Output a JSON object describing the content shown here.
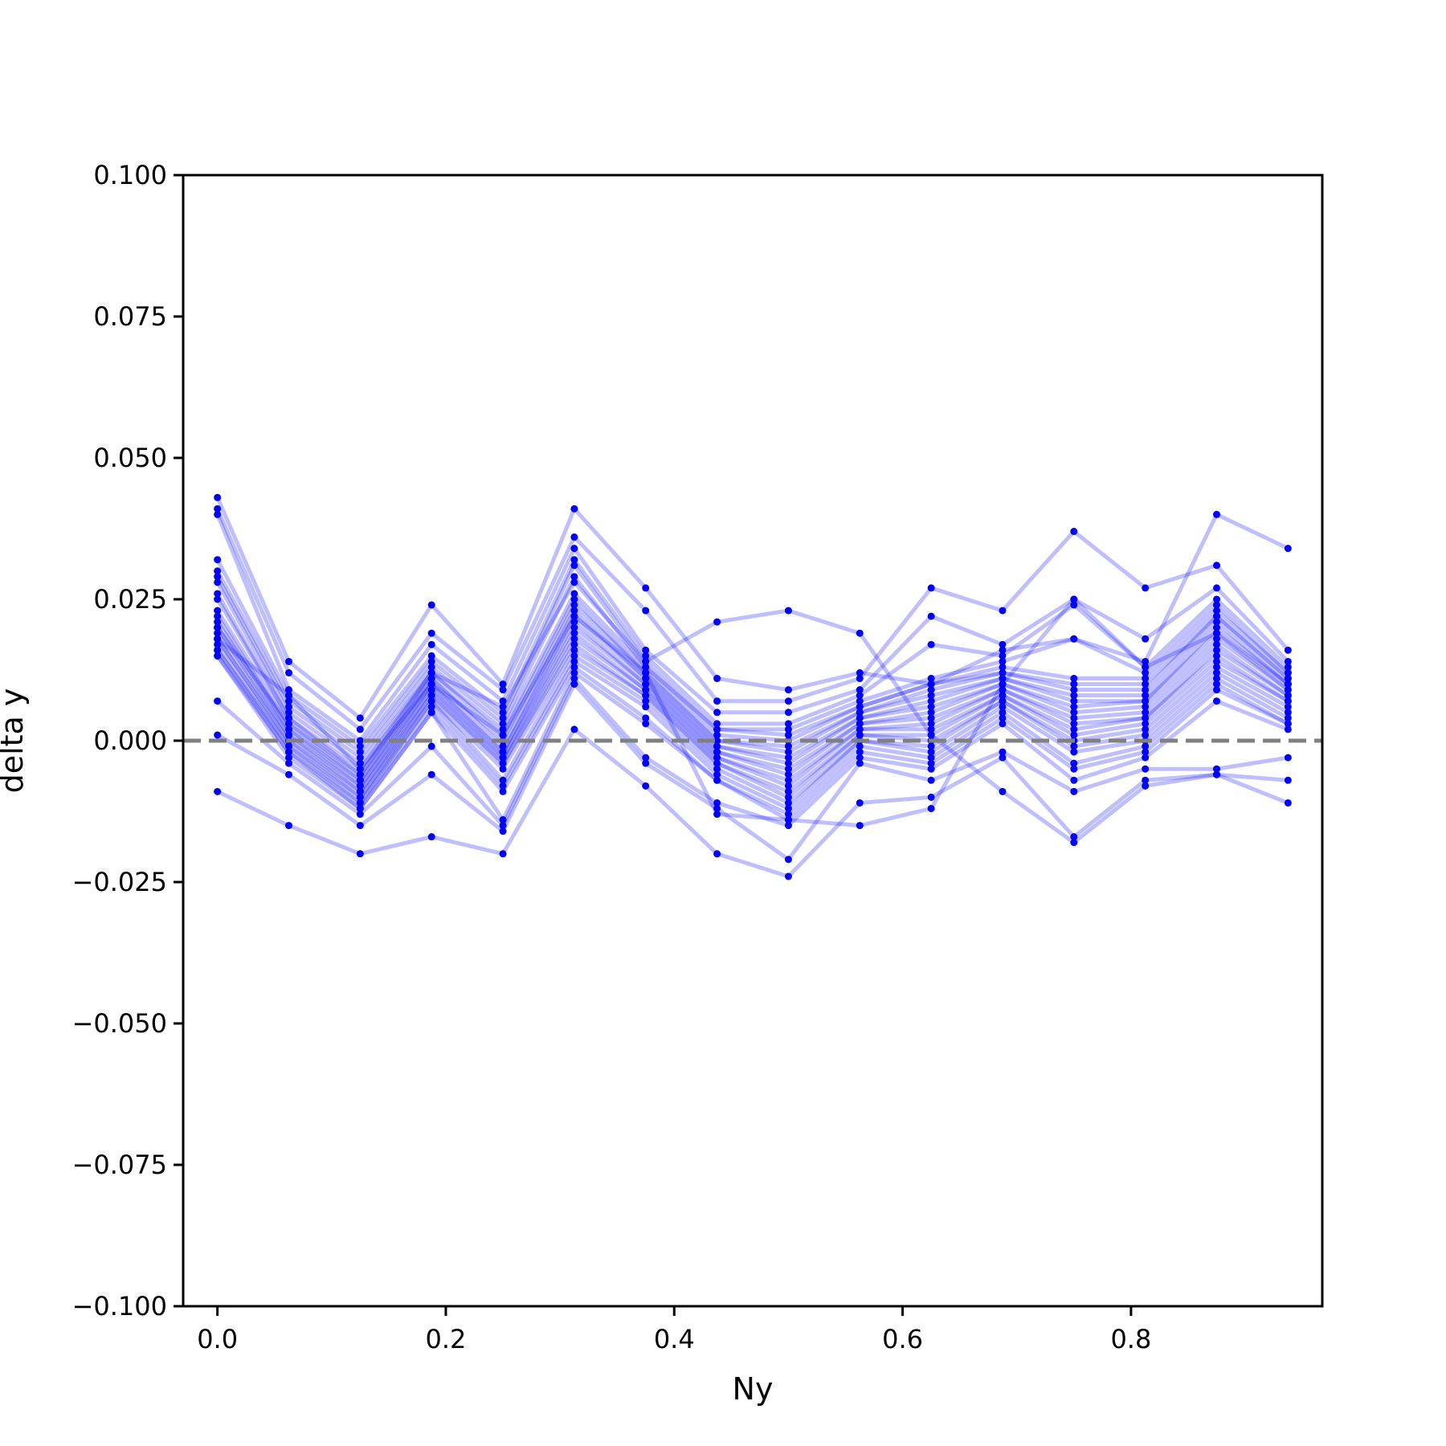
{
  "chart_data": {
    "type": "line",
    "title": "",
    "xlabel": "Ny",
    "ylabel": "delta y",
    "xlim": [
      -0.03,
      0.9675
    ],
    "ylim": [
      -0.1,
      0.1
    ],
    "xticks": [
      0.0,
      0.2,
      0.4,
      0.6,
      0.8
    ],
    "xtick_labels": [
      "0.0",
      "0.2",
      "0.4",
      "0.6",
      "0.8"
    ],
    "yticks": [
      0.1,
      0.075,
      0.05,
      0.025,
      0.0,
      -0.025,
      -0.05,
      -0.075,
      -0.1
    ],
    "ytick_labels": [
      "0.100",
      "0.075",
      "0.050",
      "0.025",
      "0.000",
      "−0.025",
      "−0.050",
      "−0.075",
      "−0.100"
    ],
    "grid": false,
    "reference_line": {
      "y": 0.0,
      "style": "dashed",
      "color": "#808080"
    },
    "series_color": "#0000ff",
    "x": [
      0.0,
      0.0625,
      0.125,
      0.1875,
      0.25,
      0.3125,
      0.375,
      0.4375,
      0.5,
      0.5625,
      0.625,
      0.6875,
      0.75,
      0.8125,
      0.875,
      0.9375
    ],
    "series": [
      {
        "values": [
          0.043,
          0.014,
          0.004,
          0.024,
          0.01,
          0.041,
          0.027,
          0.011,
          0.009,
          0.012,
          0.01,
          0.016,
          0.018,
          0.014,
          0.04,
          0.034
        ]
      },
      {
        "values": [
          0.041,
          0.012,
          0.002,
          0.019,
          0.009,
          0.036,
          0.023,
          0.007,
          0.007,
          0.011,
          0.027,
          0.023,
          0.037,
          0.027,
          0.031,
          0.016
        ]
      },
      {
        "values": [
          0.04,
          0.009,
          0.0,
          0.017,
          0.007,
          0.034,
          0.016,
          0.005,
          0.005,
          0.009,
          0.022,
          0.017,
          0.025,
          0.018,
          0.027,
          0.014
        ]
      },
      {
        "values": [
          0.032,
          0.008,
          -0.001,
          0.015,
          0.005,
          0.032,
          0.015,
          0.003,
          0.003,
          0.008,
          0.017,
          0.015,
          0.024,
          0.013,
          0.025,
          0.013
        ]
      },
      {
        "values": [
          0.03,
          0.007,
          -0.002,
          0.014,
          0.004,
          0.031,
          0.014,
          0.002,
          0.002,
          0.007,
          0.011,
          0.014,
          0.018,
          0.012,
          0.024,
          0.012
        ]
      },
      {
        "values": [
          0.029,
          0.006,
          -0.003,
          0.013,
          0.003,
          0.029,
          0.013,
          0.002,
          0.001,
          0.006,
          0.01,
          0.013,
          0.011,
          0.011,
          0.023,
          0.012
        ]
      },
      {
        "values": [
          0.028,
          0.005,
          -0.004,
          0.012,
          0.002,
          0.026,
          0.013,
          0.001,
          0.0,
          0.006,
          0.01,
          0.012,
          0.01,
          0.01,
          0.022,
          0.011
        ]
      },
      {
        "values": [
          0.026,
          0.004,
          -0.005,
          0.012,
          0.001,
          0.025,
          0.012,
          0.0,
          -0.001,
          0.005,
          0.009,
          0.012,
          0.009,
          0.009,
          0.022,
          0.011
        ]
      },
      {
        "values": [
          0.025,
          0.004,
          -0.006,
          0.011,
          0.0,
          0.024,
          0.012,
          0.0,
          -0.002,
          0.005,
          0.008,
          0.011,
          0.008,
          0.008,
          0.021,
          0.01
        ]
      },
      {
        "values": [
          0.023,
          0.003,
          -0.007,
          0.011,
          -0.001,
          0.023,
          0.011,
          -0.001,
          -0.003,
          0.004,
          0.007,
          0.011,
          0.007,
          0.007,
          0.02,
          0.01
        ]
      },
      {
        "values": [
          0.022,
          0.002,
          -0.007,
          0.01,
          -0.002,
          0.022,
          0.011,
          -0.001,
          -0.004,
          0.004,
          0.006,
          0.01,
          0.006,
          0.007,
          0.019,
          0.009
        ]
      },
      {
        "values": [
          0.021,
          0.002,
          -0.008,
          0.01,
          -0.002,
          0.021,
          0.01,
          -0.002,
          -0.005,
          0.003,
          0.005,
          0.01,
          0.005,
          0.006,
          0.018,
          0.009
        ]
      },
      {
        "values": [
          0.02,
          0.001,
          -0.008,
          0.009,
          -0.003,
          0.02,
          0.01,
          -0.002,
          -0.006,
          0.003,
          0.004,
          0.009,
          0.004,
          0.005,
          0.017,
          0.008
        ]
      },
      {
        "values": [
          0.019,
          0.001,
          -0.009,
          0.009,
          -0.003,
          0.019,
          0.009,
          -0.003,
          -0.007,
          0.002,
          0.003,
          0.009,
          0.003,
          0.004,
          0.016,
          0.008
        ]
      },
      {
        "values": [
          0.018,
          0.0,
          -0.009,
          0.008,
          -0.004,
          0.018,
          0.009,
          -0.003,
          -0.008,
          0.002,
          0.002,
          0.008,
          0.002,
          0.004,
          0.015,
          0.007
        ]
      },
      {
        "values": [
          0.018,
          0.0,
          -0.01,
          0.008,
          -0.004,
          0.017,
          0.008,
          -0.004,
          -0.009,
          0.001,
          0.001,
          0.008,
          0.001,
          0.003,
          0.014,
          0.007
        ]
      },
      {
        "values": [
          0.017,
          -0.001,
          -0.01,
          0.007,
          -0.005,
          0.016,
          0.008,
          -0.004,
          -0.01,
          0.001,
          0.0,
          0.007,
          0.0,
          0.002,
          0.013,
          0.006
        ]
      },
      {
        "values": [
          0.016,
          -0.001,
          -0.011,
          0.007,
          -0.007,
          0.015,
          0.007,
          -0.005,
          -0.011,
          0.0,
          -0.001,
          0.007,
          -0.001,
          0.001,
          0.012,
          0.005
        ]
      },
      {
        "values": [
          0.016,
          -0.002,
          -0.011,
          0.006,
          -0.008,
          0.014,
          0.006,
          -0.006,
          -0.012,
          0.0,
          -0.002,
          0.006,
          -0.002,
          0.0,
          0.011,
          0.004
        ]
      },
      {
        "values": [
          0.015,
          -0.002,
          -0.012,
          0.005,
          -0.009,
          0.013,
          0.004,
          -0.007,
          -0.013,
          -0.001,
          -0.003,
          0.005,
          -0.004,
          -0.001,
          0.01,
          0.003
        ]
      },
      {
        "values": [
          0.015,
          -0.003,
          -0.012,
          0.005,
          -0.014,
          0.012,
          0.003,
          -0.007,
          -0.014,
          -0.002,
          -0.004,
          0.004,
          -0.005,
          -0.002,
          0.009,
          0.003
        ]
      },
      {
        "values": [
          0.007,
          -0.004,
          -0.013,
          -0.001,
          -0.015,
          0.011,
          -0.003,
          -0.011,
          -0.015,
          -0.003,
          -0.005,
          0.003,
          -0.007,
          -0.003,
          0.007,
          0.002
        ]
      },
      {
        "values": [
          0.001,
          -0.006,
          -0.015,
          -0.006,
          -0.016,
          0.01,
          -0.004,
          -0.012,
          -0.021,
          -0.004,
          -0.007,
          -0.002,
          -0.009,
          -0.005,
          -0.005,
          -0.003
        ]
      },
      {
        "values": [
          -0.009,
          -0.015,
          -0.02,
          -0.017,
          -0.02,
          0.002,
          -0.008,
          -0.02,
          -0.024,
          -0.011,
          -0.01,
          -0.003,
          -0.017,
          -0.007,
          -0.006,
          -0.007
        ]
      },
      {
        "values": [
          0.02,
          0.003,
          -0.006,
          0.012,
          0.006,
          0.028,
          0.014,
          0.021,
          0.023,
          0.019,
          0.001,
          -0.009,
          -0.018,
          -0.008,
          -0.006,
          -0.011
        ]
      },
      {
        "values": [
          0.018,
          0.008,
          -0.005,
          0.01,
          0.001,
          0.022,
          0.012,
          -0.013,
          -0.014,
          -0.015,
          -0.012,
          0.01,
          0.025,
          0.013,
          0.019,
          0.01
        ]
      }
    ]
  }
}
